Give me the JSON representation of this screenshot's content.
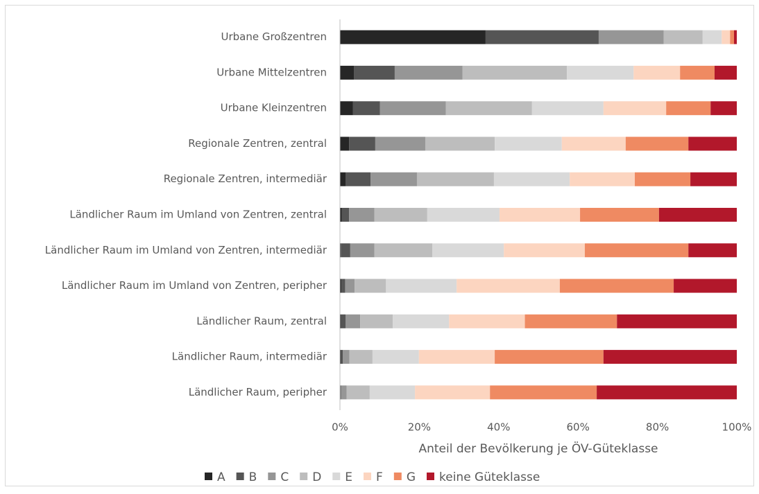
{
  "chart_data": {
    "type": "stacked_bar_horizontal",
    "categories": [
      "Urbane Großzentren",
      "Urbane Mittelzentren",
      "Urbane Kleinzentren",
      "Regionale Zentren, zentral",
      "Regionale Zentren, intermediär",
      "Ländlicher Raum im Umland von Zentren, zentral",
      "Ländlicher Raum im Umland von Zentren, intermediär",
      "Ländlicher Raum im Umland von Zentren, peripher",
      "Ländlicher Raum, zentral",
      "Ländlicher Raum, intermediär",
      "Ländlicher Raum, peripher"
    ],
    "series": [
      {
        "name": "A",
        "color": "#262626",
        "values": [
          36.7,
          3.5,
          3.3,
          2.3,
          1.4,
          0.5,
          0.2,
          0.4,
          0.3,
          0.3,
          0.1
        ]
      },
      {
        "name": "B",
        "color": "#555555",
        "values": [
          28.5,
          10.3,
          6.8,
          6.6,
          6.3,
          1.8,
          2.4,
          0.9,
          1.1,
          0.4,
          0.2
        ]
      },
      {
        "name": "C",
        "color": "#969696",
        "values": [
          16.4,
          17.1,
          16.6,
          12.6,
          11.7,
          6.4,
          6.1,
          2.4,
          3.7,
          1.7,
          1.4
        ]
      },
      {
        "name": "D",
        "color": "#bdbdbd",
        "values": [
          9.8,
          26.3,
          21.7,
          17.5,
          19.4,
          13.3,
          14.6,
          7.9,
          8.2,
          5.8,
          5.8
        ]
      },
      {
        "name": "E",
        "color": "#d9d9d9",
        "values": [
          4.8,
          16.8,
          18.0,
          16.9,
          19.1,
          18.2,
          18.0,
          17.8,
          14.2,
          11.7,
          11.4
        ]
      },
      {
        "name": "F",
        "color": "#fcd5c0",
        "values": [
          2.1,
          11.7,
          15.8,
          16.1,
          16.4,
          20.3,
          20.4,
          26.0,
          19.1,
          19.1,
          18.9
        ]
      },
      {
        "name": "G",
        "color": "#ef8a62",
        "values": [
          1.0,
          8.7,
          11.2,
          15.8,
          14.0,
          19.9,
          26.1,
          28.7,
          23.2,
          27.4,
          26.9
        ]
      },
      {
        "name": "keine Güteklasse",
        "color": "#b2182b",
        "values": [
          0.7,
          5.6,
          6.6,
          12.2,
          11.7,
          19.6,
          12.2,
          15.9,
          30.2,
          33.6,
          35.3
        ]
      }
    ],
    "xlabel": "Anteil der Bevölkerung je ÖV-Güteklasse",
    "xlim": [
      0,
      100
    ],
    "xticks": [
      {
        "value": 0,
        "label": "0%"
      },
      {
        "value": 20,
        "label": "20%"
      },
      {
        "value": 40,
        "label": "40%"
      },
      {
        "value": 60,
        "label": "60%"
      },
      {
        "value": 80,
        "label": "80%"
      },
      {
        "value": 100,
        "label": "100%"
      }
    ],
    "legend": "bottom"
  }
}
